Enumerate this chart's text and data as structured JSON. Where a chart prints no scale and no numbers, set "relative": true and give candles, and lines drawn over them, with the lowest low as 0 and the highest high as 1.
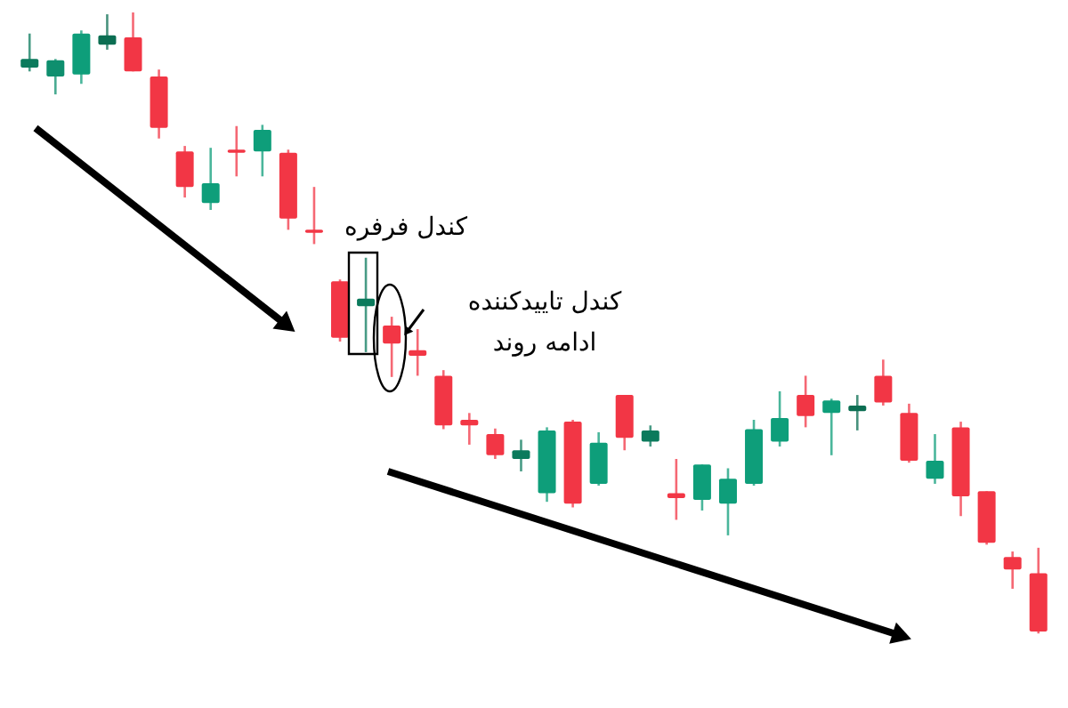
{
  "chart_data": {
    "type": "candlestick",
    "relative": true,
    "categories": [
      null,
      null,
      null,
      null,
      null,
      null,
      null,
      null,
      null,
      null,
      null,
      null,
      null,
      null,
      null,
      null,
      null,
      null,
      null,
      null,
      null,
      null,
      null,
      null,
      null,
      null,
      null,
      null,
      null,
      null,
      null,
      null,
      null,
      null,
      null,
      null,
      null,
      null,
      null,
      null
    ],
    "ohlc": [
      [
        0.911,
        0.966,
        0.905,
        0.925
      ],
      [
        0.897,
        0.925,
        0.868,
        0.923
      ],
      [
        0.9,
        0.971,
        0.885,
        0.966
      ],
      [
        0.948,
        0.997,
        0.94,
        0.963
      ],
      [
        0.96,
        1,
        0.905,
        0.905
      ],
      [
        0.897,
        0.908,
        0.797,
        0.814
      ],
      [
        0.776,
        0.785,
        0.702,
        0.719
      ],
      [
        0.693,
        0.782,
        0.682,
        0.725
      ],
      [
        0.779,
        0.817,
        0.736,
        0.774
      ],
      [
        0.776,
        0.819,
        0.736,
        0.811
      ],
      [
        0.774,
        0.779,
        0.65,
        0.668
      ],
      [
        0.65,
        0.719,
        0.627,
        0.645
      ],
      [
        0.567,
        0.57,
        0.47,
        0.476
      ],
      [
        0.527,
        0.605,
        0.453,
        0.539
      ],
      [
        0.496,
        0.51,
        0.413,
        0.467
      ],
      [
        0.456,
        0.49,
        0.415,
        0.447
      ],
      [
        0.415,
        0.424,
        0.329,
        0.335
      ],
      [
        0.344,
        0.355,
        0.304,
        0.335
      ],
      [
        0.321,
        0.33,
        0.281,
        0.287
      ],
      [
        0.281,
        0.312,
        0.261,
        0.295
      ],
      [
        0.226,
        0.332,
        0.212,
        0.327
      ],
      [
        0.341,
        0.344,
        0.203,
        0.209
      ],
      [
        0.241,
        0.324,
        0.238,
        0.307
      ],
      [
        0.384,
        0.384,
        0.295,
        0.315
      ],
      [
        0.309,
        0.335,
        0.301,
        0.327
      ],
      [
        0.226,
        0.281,
        0.183,
        0.218
      ],
      [
        0.215,
        0.272,
        0.198,
        0.272
      ],
      [
        0.209,
        0.266,
        0.158,
        0.249
      ],
      [
        0.241,
        0.344,
        0.238,
        0.329
      ],
      [
        0.309,
        0.39,
        0.301,
        0.347
      ],
      [
        0.384,
        0.415,
        0.332,
        0.35
      ],
      [
        0.355,
        0.378,
        0.287,
        0.375
      ],
      [
        0.358,
        0.384,
        0.327,
        0.367
      ],
      [
        0.415,
        0.441,
        0.367,
        0.372
      ],
      [
        0.355,
        0.37,
        0.275,
        0.278
      ],
      [
        0.249,
        0.321,
        0.241,
        0.278
      ],
      [
        0.332,
        0.341,
        0.189,
        0.221
      ],
      [
        0.229,
        0.229,
        0.143,
        0.146
      ],
      [
        0.123,
        0.132,
        0.072,
        0.103
      ],
      [
        0.097,
        0.138,
        0,
        0.003
      ]
    ],
    "colors": [
      "#0b7a5c",
      "#0e8f6e",
      "#0e9e7a",
      "#0b6e52",
      "#f23645",
      "#f23645",
      "#f23645",
      "#0e9e7a",
      "#f23645",
      "#0e9e7a",
      "#f23645",
      "#f23645",
      "#f23645",
      "#0b7a5c",
      "#f23645",
      "#f23645",
      "#f23645",
      "#f23645",
      "#f23645",
      "#0b7a5c",
      "#0e9e7a",
      "#f23645",
      "#0e9e7a",
      "#f23645",
      "#0b7a5c",
      "#f23645",
      "#0e9e7a",
      "#0e9e7a",
      "#0e9e7a",
      "#0e9e7a",
      "#f23645",
      "#0e9e7a",
      "#0b6e52",
      "#f23645",
      "#f23645",
      "#0e9e7a",
      "#f23645",
      "#f23645",
      "#f23645",
      "#f23645"
    ],
    "annotations": [
      "کندل فرفره",
      "کندل تاییدکننده\nادامه روند"
    ]
  }
}
